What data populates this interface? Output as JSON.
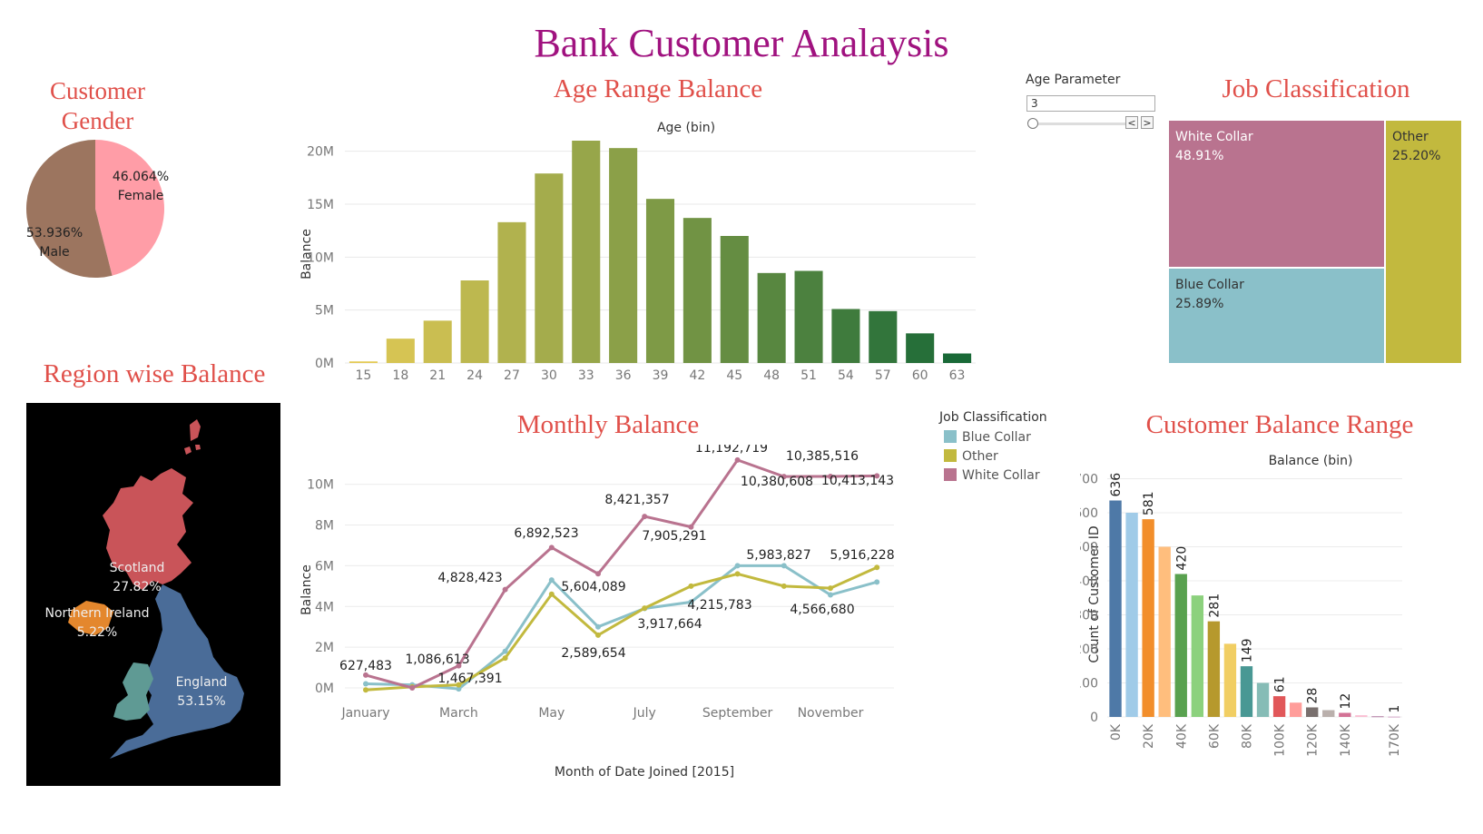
{
  "dashboard": {
    "title": "Bank Customer Analaysis"
  },
  "gender": {
    "title_line1": "Customer",
    "title_line2": "Gender",
    "slices": [
      {
        "label": "Female",
        "pct": "46.064%",
        "value": 46.064,
        "color": "#ff9da7"
      },
      {
        "label": "Male",
        "pct": "53.936%",
        "value": 53.936,
        "color": "#9c755f"
      }
    ]
  },
  "age_param": {
    "label": "Age Parameter",
    "value": "3",
    "prev": "<",
    "next": ">"
  },
  "job": {
    "title": "Job Classification",
    "cells": [
      {
        "label": "White Collar",
        "pct": "48.91%",
        "color": "#b9738f"
      },
      {
        "label": "Other",
        "pct": "25.20%",
        "color": "#c2b93e"
      },
      {
        "label": "Blue Collar",
        "pct": "25.89%",
        "color": "#8ac0c9"
      }
    ]
  },
  "region": {
    "title": "Region wise Balance",
    "regions": [
      {
        "name": "Scotland",
        "pct": "27.82%",
        "color": "#c95459"
      },
      {
        "name": "Northern Ireland",
        "pct": "5.22%",
        "color": "#e4872d"
      },
      {
        "name": "England",
        "pct": "53.15%",
        "color": "#4a6c98"
      },
      {
        "name": "Wales",
        "pct": "",
        "color": "#5f9a94"
      }
    ]
  },
  "chart_data": [
    {
      "id": "age",
      "type": "bar",
      "title": "Age Range Balance",
      "subtitle": "Age (bin)",
      "ylabel": "Balance",
      "ylim": [
        0,
        21000000
      ],
      "yticks": [
        0,
        5000000,
        10000000,
        15000000,
        20000000
      ],
      "ytick_labels": [
        "0M",
        "5M",
        "10M",
        "15M",
        "20M"
      ],
      "categories": [
        "15",
        "18",
        "21",
        "24",
        "27",
        "30",
        "33",
        "36",
        "39",
        "42",
        "45",
        "48",
        "51",
        "54",
        "57",
        "60",
        "63"
      ],
      "values": [
        150000,
        2300000,
        4000000,
        7800000,
        13300000,
        17900000,
        21000000,
        20300000,
        15500000,
        13700000,
        12000000,
        8500000,
        8700000,
        5100000,
        4900000,
        2800000,
        900000
      ],
      "grid": true
    },
    {
      "id": "monthly",
      "type": "line",
      "title": "Monthly Balance",
      "xlabel": "Month of Date Joined [2015]",
      "ylabel": "Balance",
      "ylim": [
        0,
        11500000
      ],
      "yticks": [
        0,
        2000000,
        4000000,
        6000000,
        8000000,
        10000000
      ],
      "ytick_labels": [
        "0M",
        "2M",
        "4M",
        "6M",
        "8M",
        "10M"
      ],
      "x": [
        "January",
        "February",
        "March",
        "April",
        "May",
        "June",
        "July",
        "August",
        "September",
        "October",
        "November",
        "December"
      ],
      "xtick_labels": [
        "January",
        "",
        "March",
        "",
        "May",
        "",
        "July",
        "",
        "September",
        "",
        "November",
        ""
      ],
      "legend_title": "Job Classification",
      "legend_placement": "top-right",
      "series": [
        {
          "name": "Blue Collar",
          "color": "#8ac0c9",
          "values": [
            200000,
            150000,
            -50000,
            1800000,
            5300000,
            3000000,
            3900000,
            4215783,
            6000000,
            6000000,
            4566680,
            5200000
          ]
        },
        {
          "name": "Other",
          "color": "#c2b93e",
          "values": [
            -100000,
            50000,
            150000,
            1467391,
            4600000,
            2589654,
            3917664,
            5000000,
            5600000,
            5000000,
            4900000,
            5916228
          ]
        },
        {
          "name": "White Collar",
          "color": "#b9738f",
          "values": [
            627483,
            0,
            1086613,
            4828423,
            6892523,
            5604089,
            8421357,
            7905291,
            11192719,
            10380608,
            10385516,
            10413143
          ]
        }
      ],
      "data_labels": [
        "627,483",
        "1,086,613",
        "4,828,423",
        "1,467,391",
        "6,892,523",
        "2,589,654",
        "5,604,089",
        "8,421,357",
        "3,917,664",
        "7,905,291",
        "4,215,783",
        "11,192,719",
        "5,983,827",
        "10,380,608",
        "10,385,516",
        "4,566,680",
        "10,413,143",
        "5,916,228"
      ]
    },
    {
      "id": "balance_range",
      "type": "bar",
      "title": "Customer Balance Range",
      "subtitle": "Balance (bin)",
      "ylabel": "Count of Customer ID",
      "ylim": [
        0,
        720
      ],
      "yticks": [
        0,
        100,
        200,
        300,
        400,
        500,
        600,
        700
      ],
      "categories": [
        "0K",
        "10K",
        "20K",
        "30K",
        "40K",
        "50K",
        "60K",
        "70K",
        "80K",
        "90K",
        "100K",
        "110K",
        "120K",
        "130K",
        "140K",
        "150K",
        "160K",
        "170K"
      ],
      "xtick_labels": [
        "0K",
        "",
        "20K",
        "",
        "40K",
        "",
        "60K",
        "",
        "80K",
        "",
        "100K",
        "",
        "120K",
        "",
        "140K",
        "",
        "",
        "170K"
      ],
      "values": [
        636,
        600,
        581,
        500,
        420,
        357,
        281,
        215,
        149,
        100,
        61,
        42,
        28,
        20,
        12,
        5,
        2,
        1
      ],
      "data_labels": [
        "636",
        "",
        "581",
        "",
        "420",
        "",
        "281",
        "",
        "149",
        "",
        "61",
        "",
        "28",
        "",
        "12",
        "",
        "",
        "1"
      ],
      "colors": [
        "#4e79a7",
        "#a0cbe8",
        "#f28e2b",
        "#ffbe7d",
        "#59a14f",
        "#8cd17d",
        "#b6992d",
        "#f1ce63",
        "#499894",
        "#86bcb6",
        "#e15759",
        "#ff9d9a",
        "#79706e",
        "#bab0ac",
        "#d37295",
        "#fabfd2",
        "#b07aa1",
        "#d4a6c8"
      ],
      "grid": true
    }
  ]
}
